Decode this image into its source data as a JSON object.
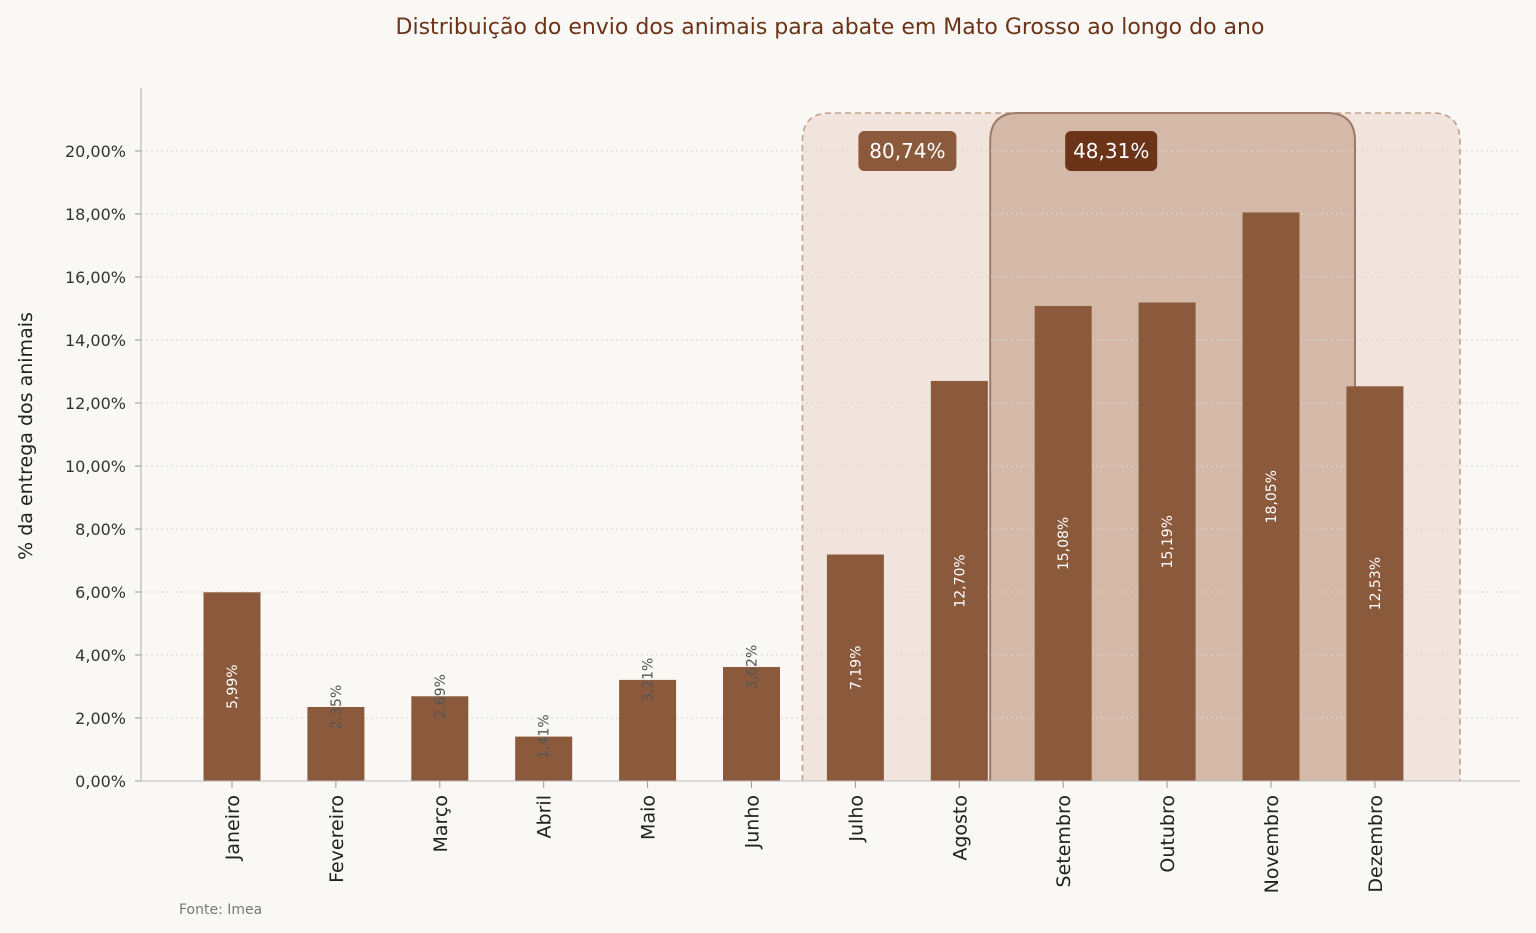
{
  "chart_data": {
    "type": "bar",
    "title": "Distribuição do envio dos animais para abate em Mato Grosso ao longo do ano",
    "xlabel": "",
    "ylabel": "% da entrega dos animais",
    "source": "Fonte: Imea",
    "categories": [
      "Janeiro",
      "Fevereiro",
      "Março",
      "Abril",
      "Maio",
      "Junho",
      "Julho",
      "Agosto",
      "Setembro",
      "Outubro",
      "Novembro",
      "Dezembro"
    ],
    "values": [
      5.99,
      2.35,
      2.69,
      1.41,
      3.21,
      3.62,
      7.19,
      12.7,
      15.08,
      15.19,
      18.05,
      12.53
    ],
    "value_labels": [
      "5,99%",
      "2,35%",
      "2,69%",
      "1,41%",
      "3,21%",
      "3,62%",
      "7,19%",
      "12,70%",
      "15,08%",
      "15,19%",
      "18,05%",
      "12,53%"
    ],
    "ylim": [
      0,
      20
    ],
    "yticks": [
      0,
      2,
      4,
      6,
      8,
      10,
      12,
      14,
      16,
      18,
      20
    ],
    "ytick_labels": [
      "0,00%",
      "2,00%",
      "4,00%",
      "6,00%",
      "8,00%",
      "10,00%",
      "12,00%",
      "14,00%",
      "16,00%",
      "18,00%",
      "20,00%"
    ],
    "grid": true,
    "highlights": [
      {
        "label": "80,74%",
        "from": "Julho",
        "to": "Dezembro",
        "style": "dashed-light"
      },
      {
        "label": "48,31%",
        "from": "Setembro",
        "to": "Novembro",
        "style": "solid-dark"
      }
    ],
    "colors": {
      "bar": "#8b5a3c",
      "highlight_outer_fill": "#f1e4dc",
      "highlight_outer_stroke": "#c4a08c",
      "highlight_inner_fill": "#d4b9a8",
      "highlight_inner_stroke": "#9c7b69",
      "badge_outer": "#8b5a3c",
      "badge_inner": "#6b3318",
      "title": "#6b3318"
    }
  }
}
